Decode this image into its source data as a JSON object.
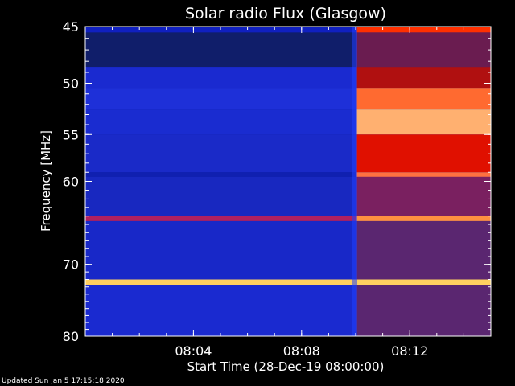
{
  "chart_data": {
    "type": "heatmap",
    "title": "Solar radio Flux (Glasgow)",
    "xlabel": "Start Time (28-Dec-19 08:00:00)",
    "ylabel": "Frequency [MHz]",
    "x_range_minutes": [
      0,
      15
    ],
    "x_ticks": [
      {
        "minute": 4,
        "label": "08:04"
      },
      {
        "minute": 8,
        "label": "08:08"
      },
      {
        "minute": 12,
        "label": "08:12"
      }
    ],
    "y_range_mhz": [
      45,
      80
    ],
    "y_ticks": [
      {
        "mhz": 45,
        "label": "45"
      },
      {
        "mhz": 50,
        "label": "50"
      },
      {
        "mhz": 55,
        "label": "55"
      },
      {
        "mhz": 60,
        "label": "60"
      },
      {
        "mhz": 70,
        "label": "70"
      },
      {
        "mhz": 80,
        "label": "80"
      }
    ],
    "transition_minute": 10,
    "bands": [
      {
        "mhz_from": 45,
        "mhz_to": 45.5,
        "before": "#1020c0",
        "after": "#ff3000"
      },
      {
        "mhz_from": 45.5,
        "mhz_to": 48.5,
        "before": "#101e6a",
        "after": "#6a1c50"
      },
      {
        "mhz_from": 48.5,
        "mhz_to": 50.5,
        "before": "#1a2ad0",
        "after": "#b01010"
      },
      {
        "mhz_from": 50.5,
        "mhz_to": 52.5,
        "before": "#1e30d8",
        "after": "#ff6a30"
      },
      {
        "mhz_from": 52.5,
        "mhz_to": 55,
        "before": "#1a2cd0",
        "after": "#ffb070"
      },
      {
        "mhz_from": 55,
        "mhz_to": 59,
        "before": "#1a2ac8",
        "after": "#e01000"
      },
      {
        "mhz_from": 59,
        "mhz_to": 59.5,
        "before": "#1020b0",
        "after": "#ff7040"
      },
      {
        "mhz_from": 59.5,
        "mhz_to": 64,
        "before": "#1828c0",
        "after": "#7a2060"
      },
      {
        "mhz_from": 64,
        "mhz_to": 64.6,
        "before": "#b02060",
        "after": "#ff9040"
      },
      {
        "mhz_from": 64.6,
        "mhz_to": 72,
        "before": "#1828c8",
        "after": "#5a2670"
      },
      {
        "mhz_from": 72,
        "mhz_to": 72.8,
        "before": "#ffd060",
        "after": "#ffd060"
      },
      {
        "mhz_from": 72.8,
        "mhz_to": 80,
        "before": "#1a2ad0",
        "after": "#5a2670"
      }
    ],
    "colors": {
      "background": "#000000",
      "axis": "#ffffff",
      "quiet": "#1a2ad0",
      "burst": "#ff2000",
      "hot": "#ffd080"
    }
  },
  "footer": {
    "updated": "Updated Sun Jan  5 17:15:18 2020"
  }
}
